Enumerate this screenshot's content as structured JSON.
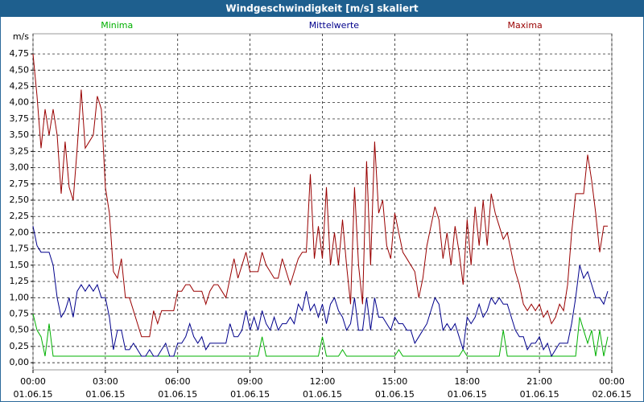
{
  "chart_data": {
    "type": "line",
    "title": "Windgeschwindigkeit [m/s] skaliert",
    "y_label": "m/s",
    "grid": true,
    "xlim": [
      0,
      1440
    ],
    "xticks": [
      {
        "value": 0,
        "label": "00:00",
        "date": "01.06.15"
      },
      {
        "value": 180,
        "label": "03:00",
        "date": "01.06.15"
      },
      {
        "value": 360,
        "label": "06:00",
        "date": "01.06.15"
      },
      {
        "value": 540,
        "label": "09:00",
        "date": "01.06.15"
      },
      {
        "value": 720,
        "label": "12:00",
        "date": "01.06.15"
      },
      {
        "value": 900,
        "label": "15:00",
        "date": "01.06.15"
      },
      {
        "value": 1080,
        "label": "18:00",
        "date": "01.06.15"
      },
      {
        "value": 1260,
        "label": "21:00",
        "date": "01.06.15"
      },
      {
        "value": 1440,
        "label": "00:00",
        "date": "02.06.15"
      }
    ],
    "ylim": [
      -0.11,
      5.06
    ],
    "yticks": [
      {
        "value": 0,
        "label": "0,00"
      },
      {
        "value": 0.25,
        "label": "0,25"
      },
      {
        "value": 0.5,
        "label": "0,50"
      },
      {
        "value": 0.75,
        "label": "0,75"
      },
      {
        "value": 1,
        "label": "1,00"
      },
      {
        "value": 1.25,
        "label": "1,25"
      },
      {
        "value": 1.5,
        "label": "1,50"
      },
      {
        "value": 1.75,
        "label": "1,75"
      },
      {
        "value": 2,
        "label": "2,00"
      },
      {
        "value": 2.25,
        "label": "2,25"
      },
      {
        "value": 2.5,
        "label": "2,50"
      },
      {
        "value": 2.75,
        "label": "2,75"
      },
      {
        "value": 3,
        "label": "3,00"
      },
      {
        "value": 3.25,
        "label": "3,25"
      },
      {
        "value": 3.5,
        "label": "3,50"
      },
      {
        "value": 3.75,
        "label": "3,75"
      },
      {
        "value": 4,
        "label": "4,00"
      },
      {
        "value": 4.25,
        "label": "4,25"
      },
      {
        "value": 4.5,
        "label": "4,50"
      },
      {
        "value": 4.75,
        "label": "4,75"
      }
    ],
    "x": [
      0,
      10,
      20,
      30,
      40,
      50,
      60,
      70,
      80,
      90,
      100,
      110,
      120,
      130,
      140,
      150,
      160,
      170,
      180,
      190,
      200,
      210,
      220,
      230,
      240,
      250,
      260,
      270,
      280,
      290,
      300,
      310,
      320,
      330,
      340,
      350,
      360,
      370,
      380,
      390,
      400,
      410,
      420,
      430,
      440,
      450,
      460,
      470,
      480,
      490,
      500,
      510,
      520,
      530,
      540,
      550,
      560,
      570,
      580,
      590,
      600,
      610,
      620,
      630,
      640,
      650,
      660,
      670,
      680,
      690,
      700,
      710,
      720,
      730,
      740,
      750,
      760,
      770,
      780,
      790,
      800,
      810,
      820,
      830,
      840,
      850,
      860,
      870,
      880,
      890,
      900,
      910,
      920,
      930,
      940,
      950,
      960,
      970,
      980,
      990,
      1000,
      1010,
      1020,
      1030,
      1040,
      1050,
      1060,
      1070,
      1080,
      1090,
      1100,
      1110,
      1120,
      1130,
      1140,
      1150,
      1160,
      1170,
      1180,
      1190,
      1200,
      1210,
      1220,
      1230,
      1240,
      1250,
      1260,
      1270,
      1280,
      1290,
      1300,
      1310,
      1320,
      1330,
      1340,
      1350,
      1360,
      1370,
      1380,
      1390,
      1400,
      1410,
      1420,
      1430
    ],
    "series": [
      {
        "name": "Minima",
        "color": "#00b000",
        "values": [
          0.75,
          0.5,
          0.4,
          0.1,
          0.6,
          0.1,
          0.1,
          0.1,
          0.1,
          0.1,
          0.1,
          0.1,
          0.1,
          0.1,
          0.1,
          0.1,
          0.1,
          0.1,
          0.1,
          0.1,
          0.1,
          0.1,
          0.1,
          0.1,
          0.1,
          0.1,
          0.1,
          0.1,
          0.1,
          0.1,
          0.1,
          0.1,
          0.1,
          0.1,
          0.1,
          0.1,
          0.1,
          0.1,
          0.1,
          0.1,
          0.1,
          0.1,
          0.1,
          0.1,
          0.1,
          0.1,
          0.1,
          0.1,
          0.1,
          0.1,
          0.1,
          0.1,
          0.1,
          0.1,
          0.1,
          0.1,
          0.1,
          0.4,
          0.1,
          0.1,
          0.1,
          0.1,
          0.1,
          0.1,
          0.1,
          0.1,
          0.1,
          0.1,
          0.1,
          0.1,
          0.1,
          0.1,
          0.4,
          0.1,
          0.1,
          0.1,
          0.1,
          0.2,
          0.1,
          0.1,
          0.1,
          0.1,
          0.1,
          0.1,
          0.1,
          0.1,
          0.1,
          0.1,
          0.1,
          0.1,
          0.1,
          0.2,
          0.1,
          0.1,
          0.1,
          0.1,
          0.1,
          0.1,
          0.1,
          0.1,
          0.1,
          0.1,
          0.1,
          0.1,
          0.1,
          0.1,
          0.1,
          0.2,
          0.1,
          0.1,
          0.1,
          0.1,
          0.1,
          0.1,
          0.1,
          0.1,
          0.1,
          0.5,
          0.1,
          0.1,
          0.1,
          0.1,
          0.1,
          0.1,
          0.1,
          0.1,
          0.1,
          0.1,
          0.1,
          0.1,
          0.1,
          0.1,
          0.1,
          0.1,
          0.1,
          0.1,
          0.7,
          0.5,
          0.3,
          0.5,
          0.1,
          0.5,
          0.1,
          0.4
        ]
      },
      {
        "name": "Mittelwerte",
        "color": "#00008b",
        "values": [
          2.1,
          1.8,
          1.7,
          1.7,
          1.7,
          1.5,
          1.0,
          0.7,
          0.8,
          1.0,
          0.7,
          1.1,
          1.2,
          1.1,
          1.2,
          1.1,
          1.2,
          1.0,
          1.0,
          0.7,
          0.2,
          0.5,
          0.5,
          0.2,
          0.2,
          0.3,
          0.2,
          0.1,
          0.1,
          0.2,
          0.1,
          0.1,
          0.2,
          0.3,
          0.1,
          0.1,
          0.3,
          0.3,
          0.4,
          0.6,
          0.4,
          0.3,
          0.4,
          0.2,
          0.3,
          0.3,
          0.3,
          0.3,
          0.3,
          0.6,
          0.4,
          0.4,
          0.5,
          0.8,
          0.5,
          0.7,
          0.5,
          0.8,
          0.6,
          0.5,
          0.7,
          0.5,
          0.6,
          0.6,
          0.7,
          0.6,
          0.9,
          0.8,
          1.1,
          0.8,
          0.9,
          0.7,
          0.9,
          0.6,
          0.9,
          1.0,
          0.8,
          0.7,
          0.5,
          0.6,
          1.0,
          0.5,
          0.5,
          1.0,
          0.5,
          1.0,
          0.7,
          0.7,
          0.6,
          0.5,
          0.7,
          0.6,
          0.6,
          0.5,
          0.5,
          0.3,
          0.4,
          0.5,
          0.6,
          0.8,
          1.0,
          0.9,
          0.5,
          0.6,
          0.5,
          0.6,
          0.4,
          0.2,
          0.7,
          0.6,
          0.7,
          0.9,
          0.7,
          0.8,
          1.0,
          0.9,
          1.0,
          0.9,
          0.9,
          0.7,
          0.5,
          0.4,
          0.4,
          0.2,
          0.3,
          0.3,
          0.4,
          0.2,
          0.3,
          0.1,
          0.2,
          0.3,
          0.3,
          0.3,
          0.6,
          1.0,
          1.5,
          1.3,
          1.4,
          1.2,
          1.0,
          1.0,
          0.9,
          1.1
        ]
      },
      {
        "name": "Maxima",
        "color": "#990000",
        "values": [
          4.75,
          4.1,
          3.3,
          3.9,
          3.5,
          3.9,
          3.5,
          2.6,
          3.4,
          2.7,
          2.5,
          3.3,
          4.2,
          3.3,
          3.4,
          3.5,
          4.1,
          3.9,
          2.7,
          2.3,
          1.4,
          1.3,
          1.6,
          1.0,
          1.0,
          0.8,
          0.6,
          0.4,
          0.4,
          0.4,
          0.8,
          0.6,
          0.8,
          0.8,
          0.8,
          0.8,
          1.1,
          1.1,
          1.2,
          1.2,
          1.1,
          1.1,
          1.1,
          0.9,
          1.1,
          1.2,
          1.2,
          1.1,
          1.0,
          1.3,
          1.6,
          1.3,
          1.5,
          1.7,
          1.4,
          1.4,
          1.4,
          1.7,
          1.5,
          1.4,
          1.3,
          1.3,
          1.6,
          1.4,
          1.2,
          1.4,
          1.6,
          1.7,
          1.7,
          2.9,
          1.6,
          2.1,
          1.6,
          2.7,
          1.5,
          2.0,
          1.5,
          2.2,
          1.5,
          0.9,
          2.7,
          1.5,
          0.9,
          3.1,
          1.5,
          3.4,
          2.3,
          2.5,
          1.8,
          1.6,
          2.3,
          2.0,
          1.7,
          1.6,
          1.5,
          1.4,
          1.0,
          1.3,
          1.8,
          2.1,
          2.4,
          2.2,
          1.6,
          2.0,
          1.5,
          2.1,
          1.7,
          1.2,
          2.2,
          1.5,
          2.4,
          1.8,
          2.5,
          1.8,
          2.6,
          2.3,
          2.1,
          1.9,
          2.0,
          1.7,
          1.4,
          1.2,
          0.9,
          0.8,
          0.9,
          0.8,
          0.9,
          0.7,
          0.8,
          0.6,
          0.7,
          0.9,
          0.8,
          1.2,
          2.0,
          2.6,
          2.6,
          2.6,
          3.2,
          2.8,
          2.3,
          1.7,
          2.1,
          2.1
        ]
      }
    ]
  }
}
